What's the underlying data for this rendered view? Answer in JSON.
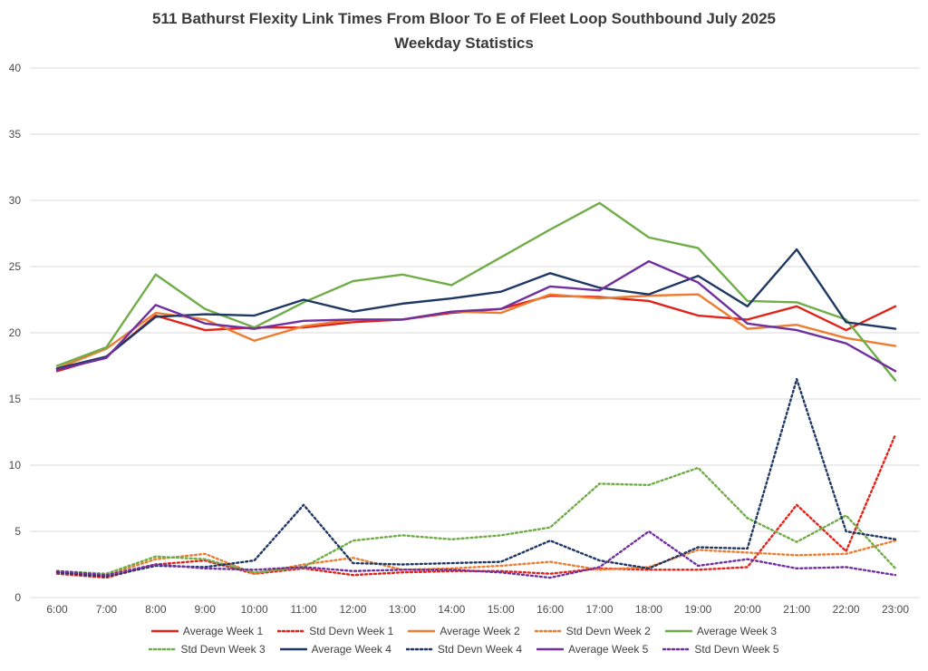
{
  "chart_data": {
    "type": "line",
    "title": "511 Bathurst Flexity Link Times From Bloor To E of Fleet Loop Southbound July 2025",
    "subtitle": "Weekday Statistics",
    "x_labels": [
      "6:00",
      "7:00",
      "8:00",
      "9:00",
      "10:00",
      "11:00",
      "12:00",
      "13:00",
      "14:00",
      "15:00",
      "16:00",
      "17:00",
      "18:00",
      "19:00",
      "20:00",
      "21:00",
      "22:00",
      "23:00"
    ],
    "ylim": [
      0,
      40
    ],
    "y_ticks": [
      0,
      5,
      10,
      15,
      20,
      25,
      30,
      35,
      40
    ],
    "grid": true,
    "legend_position": "bottom",
    "gridline_color": "#d9d9d9",
    "tick_label_color": "#4a4a4a",
    "series": [
      {
        "name": "Average Week 1",
        "color": "#e2231a",
        "style": "solid",
        "values": [
          17.1,
          18.2,
          21.3,
          20.2,
          20.4,
          20.4,
          20.8,
          21.0,
          21.5,
          21.8,
          22.8,
          22.7,
          22.4,
          21.3,
          21.0,
          22.0,
          20.2,
          22.0
        ]
      },
      {
        "name": "Std Devn Week 1",
        "color": "#e2231a",
        "style": "dotted",
        "values": [
          1.8,
          1.5,
          2.5,
          2.8,
          1.8,
          2.2,
          1.7,
          1.9,
          2.0,
          2.0,
          1.8,
          2.2,
          2.1,
          2.1,
          2.3,
          7.0,
          3.5,
          12.3
        ]
      },
      {
        "name": "Average Week 2",
        "color": "#ed7d31",
        "style": "solid",
        "values": [
          17.3,
          18.8,
          21.5,
          21.0,
          19.4,
          20.5,
          21.0,
          21.0,
          21.6,
          21.5,
          22.9,
          22.6,
          22.8,
          22.9,
          20.3,
          20.6,
          19.6,
          19.0
        ]
      },
      {
        "name": "Std Devn Week 2",
        "color": "#ed7d31",
        "style": "dotted",
        "values": [
          1.9,
          1.7,
          2.9,
          3.3,
          1.8,
          2.5,
          3.0,
          2.1,
          2.2,
          2.4,
          2.7,
          2.1,
          2.3,
          3.6,
          3.4,
          3.2,
          3.3,
          4.3
        ]
      },
      {
        "name": "Average Week 3",
        "color": "#70ad47",
        "style": "solid",
        "values": [
          17.5,
          18.9,
          24.4,
          21.8,
          20.4,
          22.3,
          23.9,
          24.4,
          23.6,
          25.7,
          27.8,
          29.8,
          27.2,
          26.4,
          22.4,
          22.3,
          21.0,
          16.4
        ]
      },
      {
        "name": "Std Devn Week 3",
        "color": "#70ad47",
        "style": "dotted",
        "values": [
          2.0,
          1.8,
          3.1,
          2.9,
          1.9,
          2.3,
          4.3,
          4.7,
          4.4,
          4.7,
          5.3,
          8.6,
          8.5,
          9.8,
          6.0,
          4.2,
          6.2,
          2.2
        ]
      },
      {
        "name": "Average Week 4",
        "color": "#1f3864",
        "style": "solid",
        "values": [
          17.3,
          18.2,
          21.2,
          21.4,
          21.3,
          22.5,
          21.6,
          22.2,
          22.6,
          23.1,
          24.5,
          23.4,
          22.9,
          24.3,
          22.0,
          26.3,
          20.8,
          20.3
        ]
      },
      {
        "name": "Std Devn Week 4",
        "color": "#1f3864",
        "style": "dotted",
        "values": [
          1.9,
          1.6,
          2.4,
          2.3,
          2.8,
          7.0,
          2.6,
          2.5,
          2.6,
          2.7,
          4.3,
          2.8,
          2.2,
          3.8,
          3.7,
          16.5,
          5.0,
          4.4
        ]
      },
      {
        "name": "Average Week 5",
        "color": "#7030a0",
        "style": "solid",
        "values": [
          17.2,
          18.1,
          22.1,
          20.7,
          20.3,
          20.9,
          21.0,
          21.0,
          21.6,
          21.8,
          23.5,
          23.2,
          25.4,
          23.8,
          20.7,
          20.2,
          19.2,
          17.1
        ]
      },
      {
        "name": "Std Devn Week 5",
        "color": "#7030a0",
        "style": "dotted",
        "values": [
          2.0,
          1.7,
          2.5,
          2.2,
          2.1,
          2.3,
          2.0,
          2.1,
          2.1,
          1.9,
          1.5,
          2.3,
          5.0,
          2.4,
          2.9,
          2.2,
          2.3,
          1.7
        ]
      }
    ],
    "legend_rows": [
      [
        "Average Week 1",
        "Std Devn Week 1",
        "Average Week 2",
        "Std Devn Week 2",
        "Average Week 3"
      ],
      [
        "Std Devn Week 3",
        "Average Week 4",
        "Std Devn Week 4",
        "Average Week 5",
        "Std Devn Week 5"
      ]
    ]
  }
}
